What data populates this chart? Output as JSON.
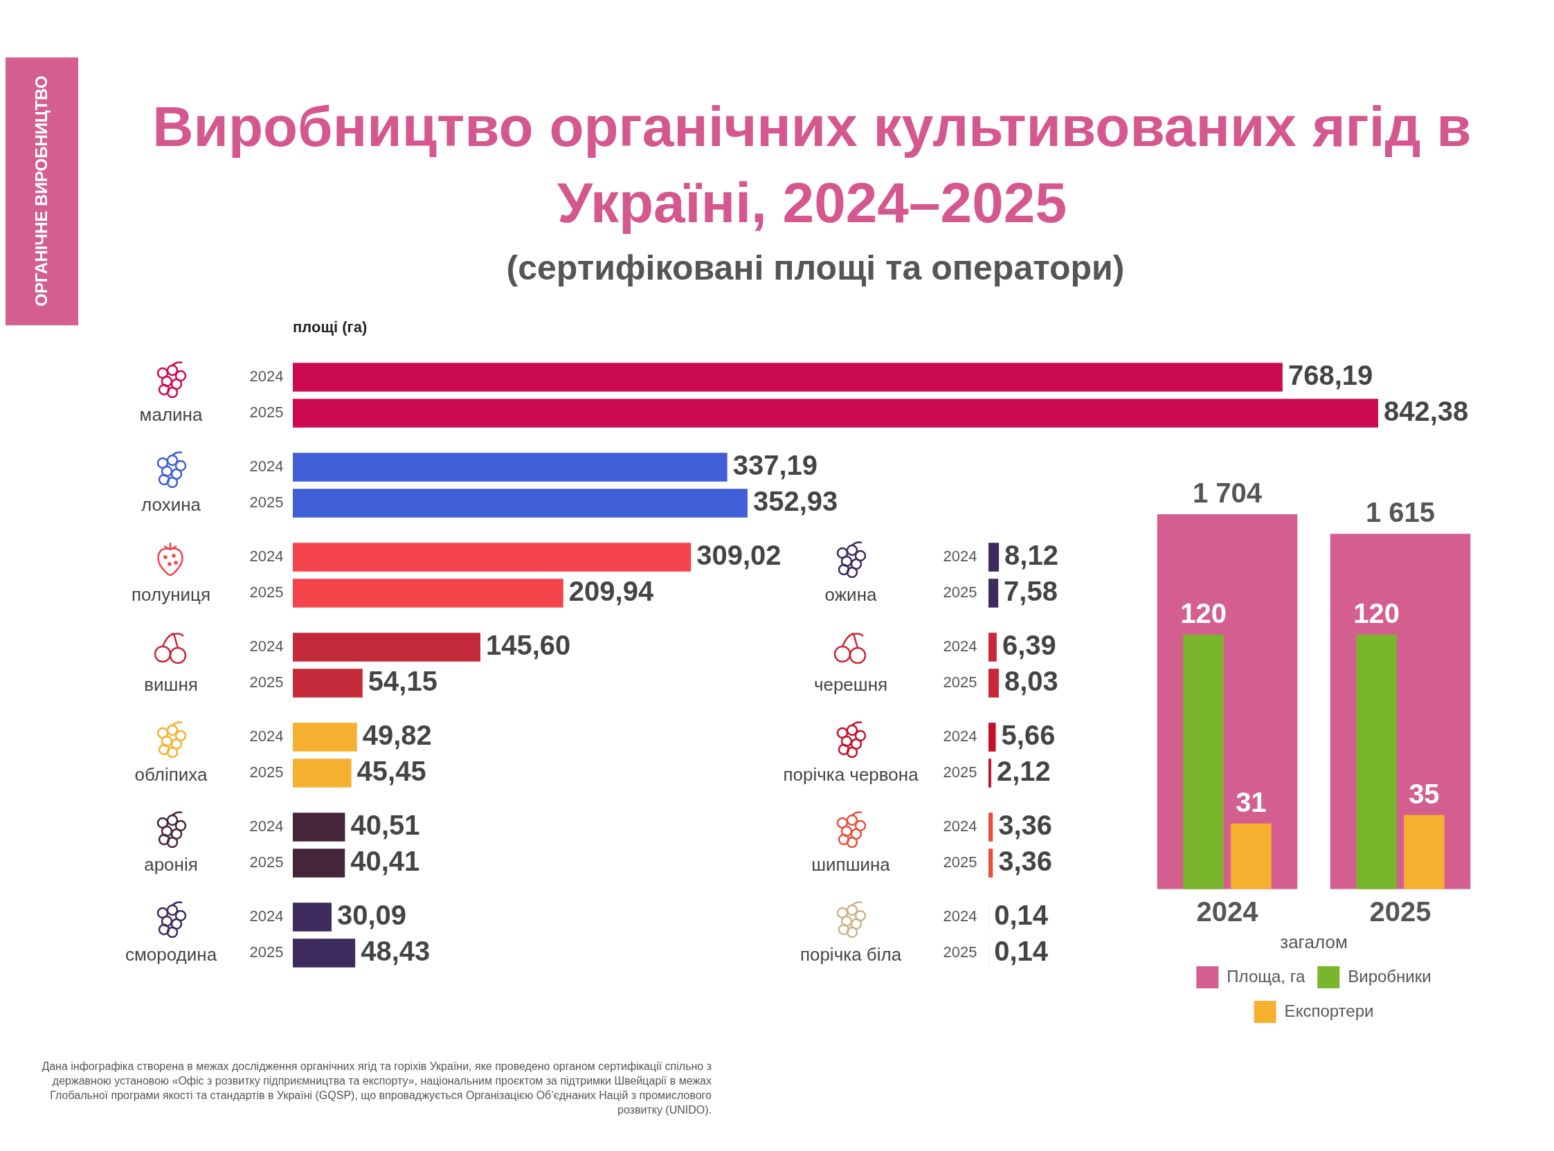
{
  "chart_data": [
    {
      "type": "bar",
      "orientation": "horizontal",
      "title": "Виробництво органічних культивованих ягід в Україні, 2024–2025",
      "subtitle": "(сертифіковані площі та оператори)",
      "xlabel": "площі (га)",
      "annotations": [
        "ОРГАНІЧНЕ ВИРОБНИЦТВО",
        "Дана інфографіка створена в межах дослідження органічних ягід та горіхів України, яке проведено органом сертифікації спільно з державною установою «Офіс з розвитку підприємництва та експорту», національним проєктом за підтримки Швейцарії в межах Глобальної програми якості та стандартів в Україні (GQSP), що впроваджується Організацією Об’єднаних Націй з промислового розвитку (UNIDO)."
      ],
      "tick_labels": false,
      "categories": [
        "малина",
        "лохина",
        "полуниця",
        "вишня",
        "обліпиха",
        "аронія",
        "смородина"
      ],
      "series": [
        {
          "name": "2024",
          "colors": [
            "#cc0a52",
            "#3f5fd6",
            "#f4434a",
            "#c42a3a",
            "#f6b030",
            "#46243a",
            "#3d2a5e"
          ],
          "values": [
            768.19,
            337.19,
            309.02,
            145.6,
            49.82,
            40.51,
            30.09
          ],
          "value_labels": [
            "768,19",
            "337,19",
            "309,02",
            "145,60",
            "49,82",
            "40,51",
            "30,09"
          ]
        },
        {
          "name": "2025",
          "colors": [
            "#cc0a52",
            "#3f5fd6",
            "#f4434a",
            "#c42a3a",
            "#f6b030",
            "#46243a",
            "#3d2a5e"
          ],
          "values": [
            842.38,
            352.93,
            209.94,
            54.15,
            45.45,
            40.41,
            48.43
          ],
          "value_labels": [
            "842,38",
            "352,93",
            "209,94",
            "54,15",
            "45,45",
            "40,41",
            "48,43"
          ]
        }
      ]
    },
    {
      "type": "bar",
      "orientation": "horizontal",
      "tick_labels": false,
      "categories": [
        "ожина",
        "черешня",
        "порічка червона",
        "шипшина",
        "порічка біла"
      ],
      "series": [
        {
          "name": "2024",
          "colors": [
            "#3d2a5e",
            "#c9283a",
            "#c40f2c",
            "#e8503e",
            "#d9c59a"
          ],
          "values": [
            8.12,
            6.39,
            5.66,
            3.36,
            0.14
          ],
          "value_labels": [
            "8,12",
            "6,39",
            "5,66",
            "3,36",
            "0,14"
          ]
        },
        {
          "name": "2025",
          "colors": [
            "#3d2a5e",
            "#c9283a",
            "#c40f2c",
            "#e8503e",
            "#d9c59a"
          ],
          "values": [
            7.58,
            8.03,
            2.12,
            3.36,
            0.14
          ],
          "value_labels": [
            "7,58",
            "8,03",
            "2,12",
            "3,36",
            "0,14"
          ]
        }
      ]
    },
    {
      "type": "bar",
      "xlabel": "загалом",
      "legend": "bottom",
      "tick_labels": "x",
      "categories": [
        "2024",
        "2025"
      ],
      "series": [
        {
          "name": "Площа, га",
          "color": "#d45e8f",
          "values": [
            1704,
            1615
          ],
          "value_labels": [
            "1 704",
            "1 615"
          ]
        },
        {
          "name": "Виробники",
          "color": "#7ab62b",
          "axis": "y2",
          "values": [
            120,
            120
          ],
          "value_labels": [
            "120",
            "120"
          ]
        },
        {
          "name": "Експортери",
          "color": "#f6b030",
          "axis": "y2",
          "values": [
            31,
            35
          ],
          "value_labels": [
            "31",
            "35"
          ]
        }
      ]
    }
  ]
}
